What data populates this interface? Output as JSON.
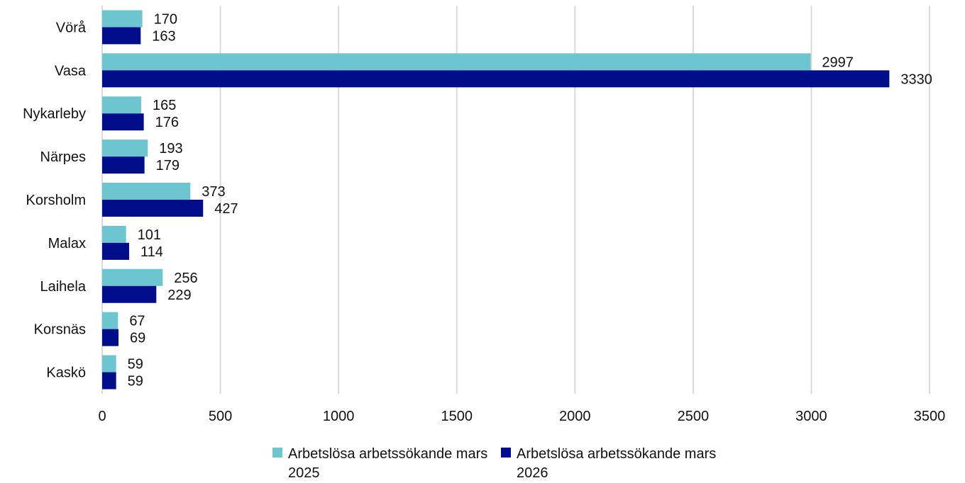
{
  "chart_data": {
    "type": "bar",
    "orientation": "horizontal",
    "categories": [
      "Vörå",
      "Vasa",
      "Nykarleby",
      "Närpes",
      "Korsholm",
      "Malax",
      "Laihela",
      "Korsnäs",
      "Kaskö"
    ],
    "series": [
      {
        "name": "Arbetslösa arbetssökande mars 2025",
        "color": "#6cc5cf",
        "values": [
          170,
          2997,
          165,
          193,
          373,
          101,
          256,
          67,
          59
        ]
      },
      {
        "name": "Arbetslösa arbetssökande mars 2026",
        "color": "#000e8c",
        "values": [
          163,
          3330,
          176,
          179,
          427,
          114,
          229,
          69,
          59
        ]
      }
    ],
    "xlim": [
      0,
      3500
    ],
    "xticks": [
      0,
      500,
      1000,
      1500,
      2000,
      2500,
      3000,
      3500
    ],
    "grid": "vertical",
    "data_labels": true,
    "legend_position": "bottom",
    "title": "",
    "xlabel": "",
    "ylabel": ""
  }
}
